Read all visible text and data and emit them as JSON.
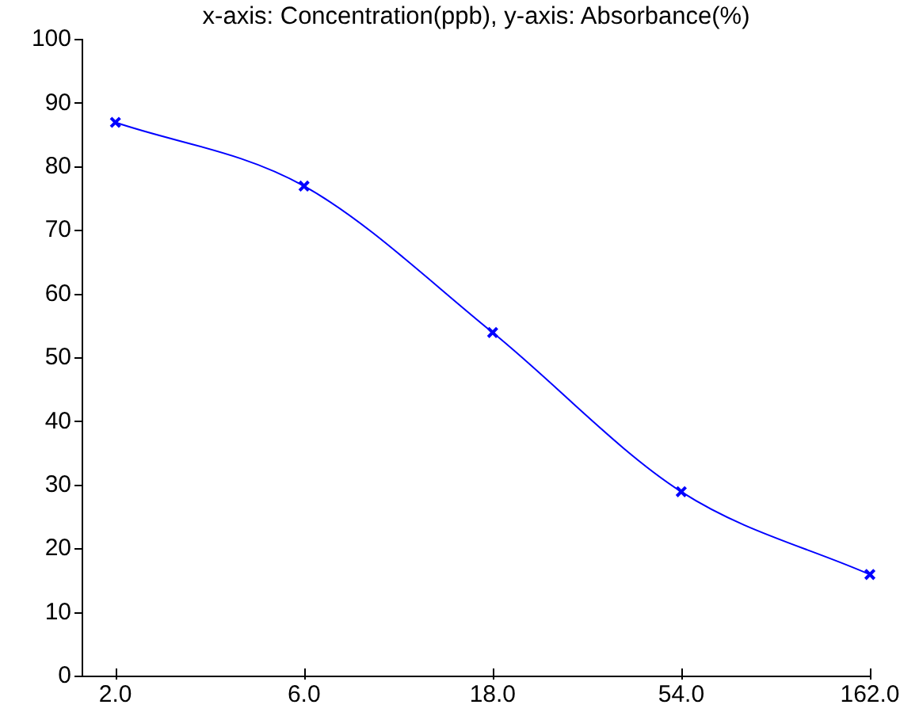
{
  "chart_data": {
    "type": "line",
    "title": "x-axis: Concentration(ppb), y-axis: Absorbance(%)",
    "log": "x",
    "marker": "cross",
    "line_style": "solid",
    "x": [
      2,
      6,
      18,
      54,
      162
    ],
    "series": [
      {
        "color": "#0000ff",
        "values": [
          87,
          77,
          54,
          29,
          16
        ]
      }
    ],
    "xlim": [
      1.65,
      162
    ],
    "xticks": [
      {
        "value": 2,
        "label": "2.0"
      },
      {
        "value": 6,
        "label": "6.0"
      },
      {
        "value": 18,
        "label": "18.0"
      },
      {
        "value": 54,
        "label": "54.0"
      },
      {
        "value": 162,
        "label": "162.0"
      }
    ],
    "ylim": [
      0,
      100
    ],
    "yticks": [
      0,
      10,
      20,
      30,
      40,
      50,
      60,
      70,
      80,
      90,
      100
    ]
  }
}
